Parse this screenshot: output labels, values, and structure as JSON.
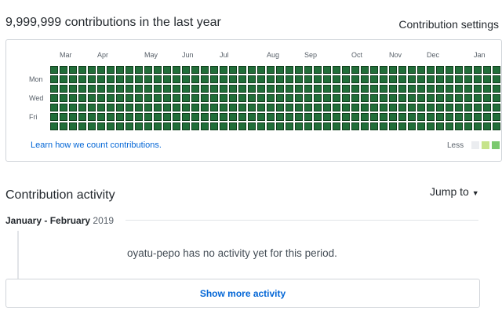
{
  "header": {
    "title": "9,999,999 contributions in the last year",
    "settings_label": "Contribution settings"
  },
  "calendar": {
    "months": [
      "Mar",
      "Apr",
      "May",
      "Jun",
      "Jul",
      "Aug",
      "Sep",
      "Oct",
      "Nov",
      "Dec",
      "Jan"
    ],
    "days": [
      "Mon",
      "Wed",
      "Fri"
    ],
    "cell_level": 4,
    "colors": {
      "level4": "#216e39",
      "level0": "#ebedf0",
      "level1": "#c6e48b",
      "level2": "#7bc96f"
    },
    "learn_link": "Learn how we count contributions.",
    "legend_less": "Less"
  },
  "activity": {
    "title": "Contribution activity",
    "jump_to": "Jump to",
    "period_month": "January - February",
    "period_year": "2019",
    "no_activity": "oyatu-pepo has no activity yet for this period.",
    "show_more": "Show more activity"
  }
}
